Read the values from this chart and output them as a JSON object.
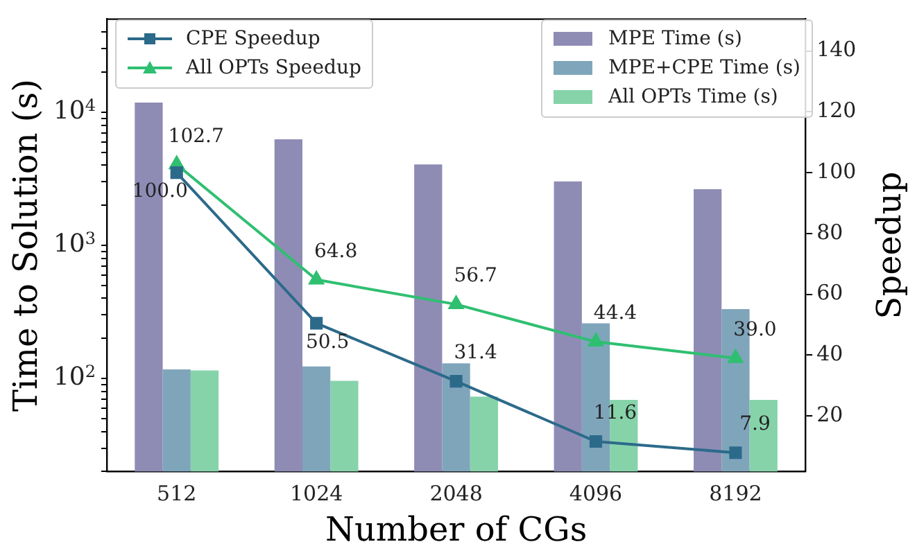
{
  "chart_data": {
    "type": "bar",
    "xlabel": "Number of CGs",
    "ylabel": "Time to Solution (s)",
    "y2label": "Speedup",
    "categories": [
      "512",
      "1024",
      "2048",
      "4096",
      "8192"
    ],
    "series": [
      {
        "name": "MPE Time (s)",
        "color": "#8e8cb5",
        "values": [
          11800,
          6250,
          4050,
          3020,
          2640
        ]
      },
      {
        "name": "MPE+CPE Time (s)",
        "color": "#7fa5bb",
        "values": [
          117,
          123,
          130,
          260,
          332
        ]
      },
      {
        "name": "All OPTs Time (s)",
        "color": "#86d3aa",
        "values": [
          115,
          96,
          73,
          69,
          69
        ]
      },
      {
        "name": "CPE Speedup",
        "type": "line",
        "axis": "y2",
        "color": "#2c6a8a",
        "marker": "square",
        "values": [
          100.0,
          50.5,
          31.4,
          11.6,
          7.9
        ],
        "value_labels": [
          "100.0",
          "50.5",
          "31.4",
          "11.6",
          "7.9"
        ]
      },
      {
        "name": "All OPTs Speedup",
        "type": "line",
        "axis": "y2",
        "color": "#2fbf71",
        "marker": "triangle",
        "values": [
          102.7,
          64.8,
          56.7,
          44.4,
          39.0
        ],
        "value_labels": [
          "102.7",
          "64.8",
          "56.7",
          "44.4",
          "39.0"
        ]
      }
    ],
    "log": "y",
    "ylim": [
      20,
      50000
    ],
    "yticks": [
      {
        "value": 20,
        "label": null
      },
      {
        "value": 30,
        "label": null
      },
      {
        "value": 40,
        "label": null
      },
      {
        "value": 50,
        "label": null
      },
      {
        "value": 60,
        "label": null
      },
      {
        "value": 70,
        "label": null
      },
      {
        "value": 80,
        "label": null
      },
      {
        "value": 90,
        "label": null
      },
      {
        "value": 100,
        "label": "10$^{2}$"
      },
      {
        "value": 200,
        "label": null
      },
      {
        "value": 300,
        "label": null
      },
      {
        "value": 400,
        "label": null
      },
      {
        "value": 500,
        "label": null
      },
      {
        "value": 600,
        "label": null
      },
      {
        "value": 700,
        "label": null
      },
      {
        "value": 800,
        "label": null
      },
      {
        "value": 900,
        "label": null
      },
      {
        "value": 1000,
        "label": "10$^{3}$"
      },
      {
        "value": 2000,
        "label": null
      },
      {
        "value": 3000,
        "label": null
      },
      {
        "value": 4000,
        "label": null
      },
      {
        "value": 5000,
        "label": null
      },
      {
        "value": 6000,
        "label": null
      },
      {
        "value": 7000,
        "label": null
      },
      {
        "value": 8000,
        "label": null
      },
      {
        "value": 9000,
        "label": null
      },
      {
        "value": 10000,
        "label": "10$^{4}$"
      },
      {
        "value": 20000,
        "label": null
      },
      {
        "value": 30000,
        "label": null
      },
      {
        "value": 40000,
        "label": null
      }
    ],
    "y2lim": [
      1.7,
      150.5
    ],
    "y2ticks": [
      20,
      40,
      60,
      80,
      100,
      120,
      140
    ],
    "grid": false,
    "legend": "top"
  }
}
